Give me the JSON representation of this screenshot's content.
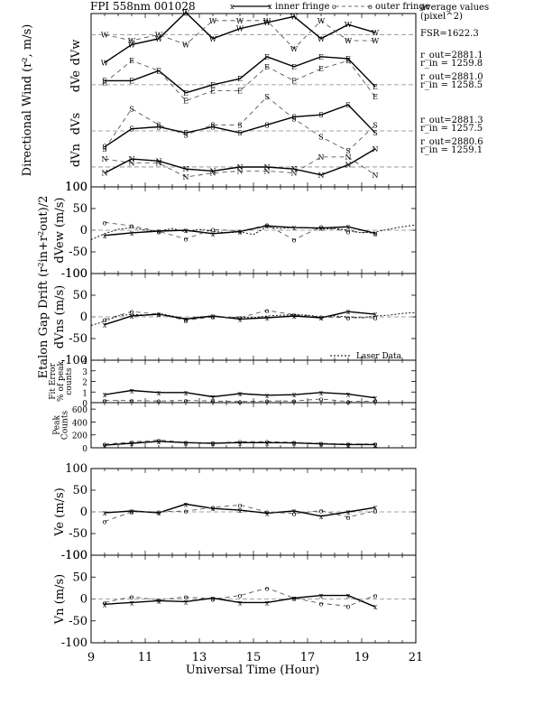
{
  "title": "FPI 558nm 001028",
  "legend": {
    "inner": "inner fringe",
    "outer": "outer fringe",
    "inner_marker": "x",
    "outer_marker": "o",
    "laser": "Laser Data"
  },
  "avg": {
    "title": "average values\n(pixel^2)",
    "fsr": "FSR=1622.3",
    "groups": [
      {
        "r_out": "r_out=2881.1",
        "r_in": "r_in = 1259.8"
      },
      {
        "r_out": "r_out=2881.0",
        "r_in": "r_in = 1258.5"
      },
      {
        "r_out": "r_out=2881.3",
        "r_in": "r_in = 1257.5"
      },
      {
        "r_out": "r_out=2880.6",
        "r_in": "r_in = 1259.1"
      }
    ]
  },
  "xaxis": {
    "label": "Universal Time (Hour)",
    "ticks": [
      "9",
      "11",
      "13",
      "15",
      "17",
      "19",
      "21"
    ]
  },
  "chart_data": [
    {
      "type": "line",
      "id": "wind",
      "ylabel_main": "Directional Wind (r², m/s)",
      "ylabel_sides": [
        "dVw",
        "dVe",
        "dVs",
        "dVn"
      ],
      "letters": [
        "W",
        "E",
        "S",
        "N"
      ],
      "x": [
        9.5,
        10.5,
        11.5,
        12.5,
        13.5,
        14.5,
        15.5,
        16.5,
        17.5,
        18.5,
        19.5
      ],
      "ylim": [
        -6,
        0
      ],
      "series": [
        {
          "name": "inner",
          "dir": "W",
          "values": [
            -1.0,
            -0.55,
            -0.4,
            0.25,
            -0.4,
            -0.15,
            0.0,
            0.15,
            -0.4,
            -0.05,
            -0.25
          ]
        },
        {
          "name": "outer",
          "dir": "W",
          "values": [
            -0.3,
            -0.45,
            -0.3,
            -0.55,
            0.05,
            0.05,
            0.05,
            -0.65,
            0.05,
            -0.45,
            -0.45
          ]
        },
        {
          "name": "inner",
          "dir": "E",
          "values": [
            -1.45,
            -1.45,
            -1.2,
            -1.75,
            -1.55,
            -1.4,
            -0.85,
            -1.1,
            -0.85,
            -0.9,
            -1.6
          ]
        },
        {
          "name": "outer",
          "dir": "E",
          "values": [
            -1.5,
            -0.95,
            -1.2,
            -1.95,
            -1.7,
            -1.7,
            -1.1,
            -1.45,
            -1.15,
            -0.95,
            -1.85
          ]
        },
        {
          "name": "inner",
          "dir": "S",
          "values": [
            -3.1,
            -2.65,
            -2.6,
            -2.75,
            -2.6,
            -2.75,
            -2.55,
            -2.35,
            -2.3,
            -2.05,
            -2.75
          ]
        },
        {
          "name": "outer",
          "dir": "S",
          "values": [
            -3.15,
            -2.15,
            -2.55,
            -2.8,
            -2.55,
            -2.55,
            -1.85,
            -2.4,
            -2.85,
            -3.2,
            -2.55
          ]
        },
        {
          "name": "inner",
          "dir": "N",
          "values": [
            -3.75,
            -3.4,
            -3.45,
            -3.65,
            -3.7,
            -3.6,
            -3.6,
            -3.65,
            -3.8,
            -3.55,
            -3.15
          ]
        },
        {
          "name": "outer",
          "dir": "N",
          "values": [
            -3.4,
            -3.5,
            -3.5,
            -3.85,
            -3.75,
            -3.7,
            -3.7,
            -3.75,
            -3.35,
            -3.35,
            -3.8
          ]
        }
      ]
    },
    {
      "type": "line",
      "id": "dvew",
      "ylabel": "dVew (m/s)",
      "yticks": [
        "100",
        "50",
        "0",
        "-50",
        "-100"
      ],
      "ylim": [
        -100,
        100
      ],
      "x": [
        9.5,
        10.5,
        11.5,
        12.5,
        13.5,
        14.5,
        15.5,
        16.5,
        17.5,
        18.5,
        19.5
      ],
      "series": [
        {
          "name": "inner",
          "values": [
            -12,
            -6,
            -2,
            0,
            -8,
            -3,
            10,
            6,
            5,
            8,
            -7
          ]
        },
        {
          "name": "outer",
          "values": [
            18,
            10,
            -3,
            -20,
            2,
            -2,
            12,
            -22,
            8,
            -3,
            -7
          ]
        },
        {
          "name": "laser",
          "x": [
            9,
            9.5,
            10,
            10.5,
            11,
            11.5,
            12,
            12.5,
            13,
            13.5,
            14,
            14.5,
            15,
            15.5,
            16,
            16.5,
            17,
            17.5,
            18,
            18.5,
            19,
            19.5,
            20,
            20.5,
            21
          ],
          "values": [
            -22,
            -8,
            2,
            6,
            0,
            -2,
            4,
            -4,
            2,
            -2,
            -6,
            -4,
            -10,
            8,
            4,
            6,
            6,
            2,
            4,
            0,
            -6,
            -4,
            2,
            8,
            12
          ]
        }
      ]
    },
    {
      "type": "line",
      "id": "dvns",
      "ylabel": "dVns (m/s)",
      "yticks": [
        "100",
        "50",
        "0",
        "-50",
        "-100"
      ],
      "ylim": [
        -100,
        100
      ],
      "x": [
        9.5,
        10.5,
        11.5,
        12.5,
        13.5,
        14.5,
        15.5,
        16.5,
        17.5,
        18.5,
        19.5
      ],
      "series": [
        {
          "name": "inner",
          "values": [
            -18,
            2,
            6,
            -5,
            2,
            -5,
            -2,
            2,
            -2,
            12,
            6
          ]
        },
        {
          "name": "outer",
          "values": [
            -6,
            12,
            6,
            -8,
            0,
            -2,
            15,
            5,
            0,
            -2,
            -2
          ]
        },
        {
          "name": "laser",
          "x": [
            9,
            9.5,
            10,
            10.5,
            11,
            11.5,
            12,
            12.5,
            13,
            13.5,
            14,
            14.5,
            15,
            15.5,
            16,
            16.5,
            17,
            17.5,
            18,
            18.5,
            19,
            19.5,
            20,
            20.5,
            21
          ],
          "values": [
            -20,
            -10,
            2,
            6,
            4,
            8,
            2,
            -4,
            0,
            2,
            -2,
            0,
            -2,
            2,
            4,
            5,
            4,
            0,
            2,
            0,
            -2,
            2,
            4,
            8,
            10
          ]
        }
      ]
    },
    {
      "type": "line",
      "id": "fit",
      "ylabel": "Fit Error\n% of peak\ncounts",
      "yticks": [
        "4",
        "3",
        "2",
        "1",
        "0"
      ],
      "ylim": [
        0,
        4
      ],
      "x": [
        9.5,
        10.5,
        11.5,
        12.5,
        13.5,
        14.5,
        15.5,
        16.5,
        17.5,
        18.5,
        19.5
      ],
      "series": [
        {
          "name": "inner",
          "values": [
            0.75,
            1.15,
            0.95,
            0.95,
            0.55,
            0.85,
            0.7,
            0.75,
            0.95,
            0.8,
            0.45
          ]
        },
        {
          "name": "outer",
          "values": [
            0.2,
            0.2,
            0.15,
            0.2,
            0.15,
            0.1,
            0.15,
            0.15,
            0.35,
            0.1,
            0.15
          ]
        }
      ]
    },
    {
      "type": "line",
      "id": "peak",
      "ylabel": "Peak\nCounts",
      "yticks": [
        "600",
        "400",
        "200",
        "0"
      ],
      "ylim": [
        0,
        700
      ],
      "x": [
        9.5,
        10.5,
        11.5,
        12.5,
        13.5,
        14.5,
        15.5,
        16.5,
        17.5,
        18.5,
        19.5
      ],
      "series": [
        {
          "name": "inner",
          "values": [
            40,
            70,
            100,
            80,
            70,
            80,
            80,
            75,
            60,
            50,
            50
          ]
        },
        {
          "name": "outer",
          "values": [
            55,
            90,
            120,
            85,
            75,
            95,
            95,
            85,
            70,
            60,
            60
          ]
        }
      ]
    },
    {
      "type": "line",
      "id": "ve",
      "ylabel": "Ve (m/s)",
      "yticks": [
        "100",
        "50",
        "0",
        "-50",
        "-100"
      ],
      "ylim": [
        -100,
        100
      ],
      "x": [
        9.5,
        10.5,
        11.5,
        12.5,
        13.5,
        14.5,
        15.5,
        16.5,
        17.5,
        18.5,
        19.5
      ],
      "series": [
        {
          "name": "inner",
          "values": [
            -2,
            2,
            -2,
            18,
            8,
            4,
            -3,
            2,
            -10,
            0,
            10
          ]
        },
        {
          "name": "outer",
          "values": [
            -22,
            0,
            0,
            2,
            10,
            16,
            0,
            -4,
            3,
            -12,
            2
          ]
        }
      ]
    },
    {
      "type": "line",
      "id": "vn",
      "ylabel": "Vn (m/s)",
      "yticks": [
        "100",
        "50",
        "0",
        "-50",
        "-100"
      ],
      "ylim": [
        -100,
        100
      ],
      "x": [
        9.5,
        10.5,
        11.5,
        12.5,
        13.5,
        14.5,
        15.5,
        16.5,
        17.5,
        18.5,
        19.5
      ],
      "series": [
        {
          "name": "inner",
          "values": [
            -12,
            -8,
            -4,
            -6,
            2,
            -8,
            -8,
            2,
            8,
            8,
            -18
          ]
        },
        {
          "name": "outer",
          "values": [
            -8,
            5,
            -2,
            5,
            0,
            8,
            25,
            2,
            -10,
            -16,
            8
          ]
        }
      ]
    }
  ]
}
